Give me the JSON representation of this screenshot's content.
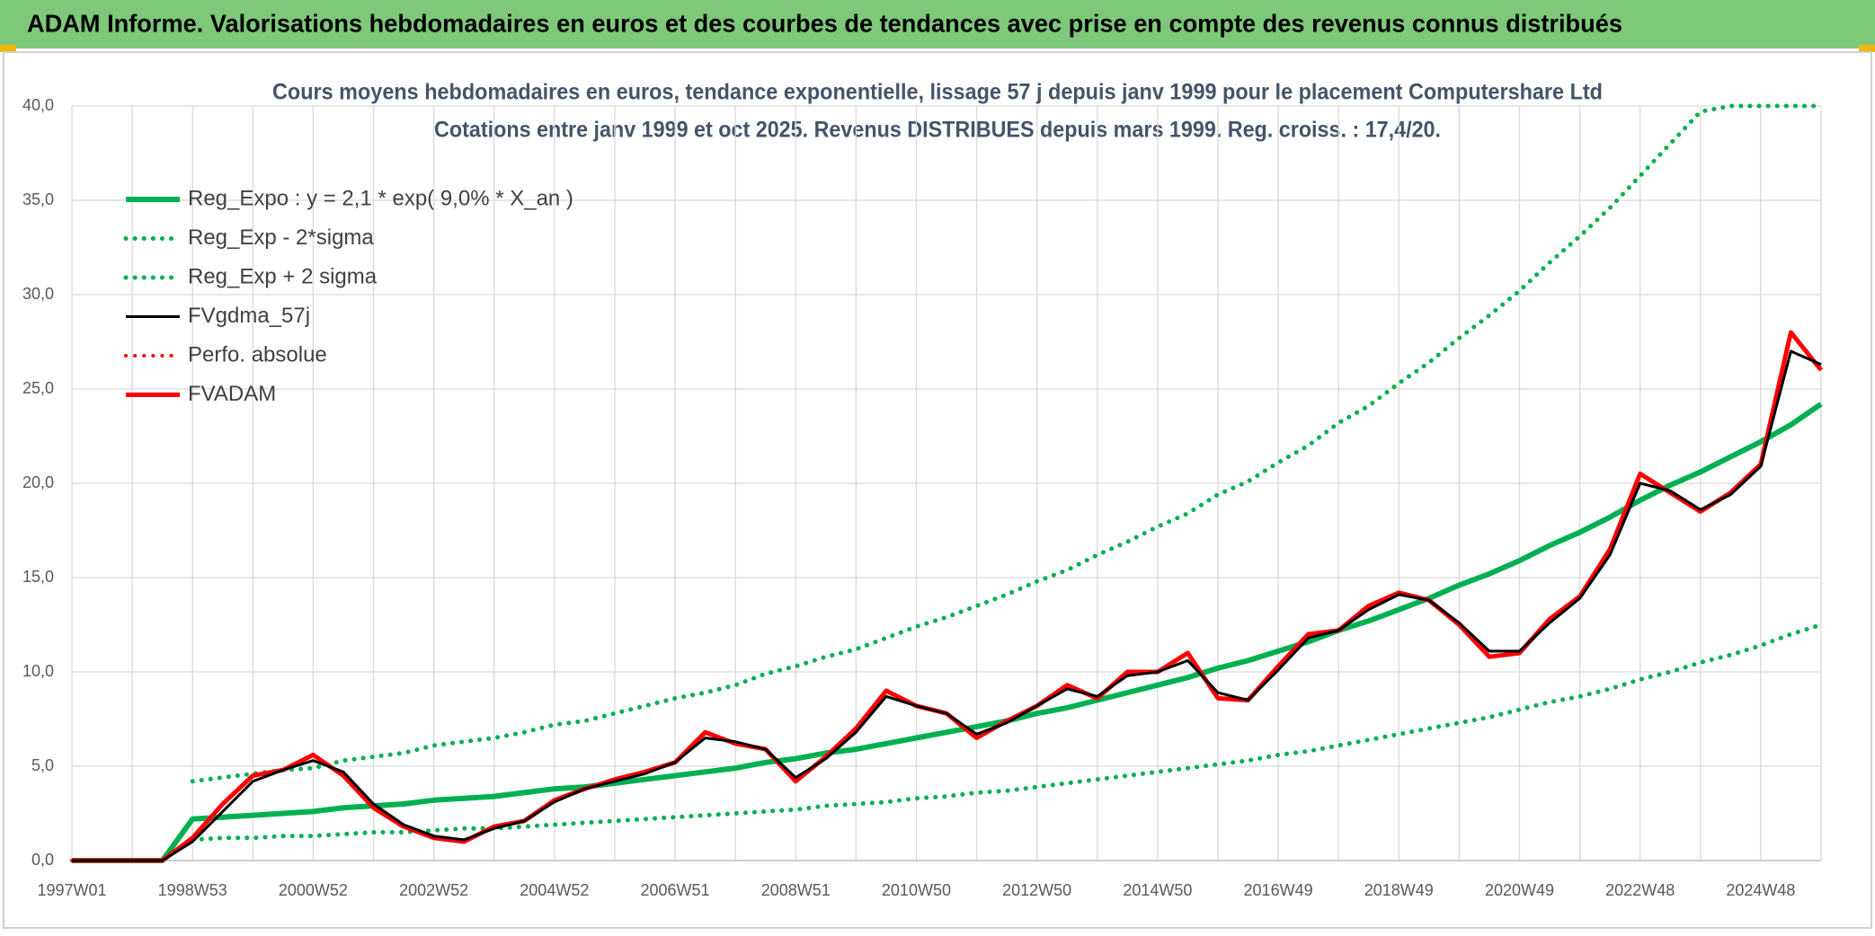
{
  "chart_data": {
    "type": "line",
    "header": "ADAM Informe. Valorisations hebdomadaires en euros et des courbes de tendances avec prise en compte des revenus connus distribués",
    "title": "Cours moyens hebdomadaires en euros, tendance exponentielle, lissage 57 j depuis janv 1999 pour le placement Computershare Ltd",
    "subtitle": "Cotations entre janv 1999 et oct 2025. Revenus DISTRIBUES depuis mars 1999. Reg. croiss. : 17,4/20.",
    "categories": [
      "1997W01",
      null,
      null,
      null,
      "1998W53",
      null,
      null,
      null,
      "2000W52",
      null,
      null,
      null,
      "2002W52",
      null,
      null,
      null,
      "2004W52",
      null,
      null,
      null,
      "2006W51",
      null,
      null,
      null,
      "2008W51",
      null,
      null,
      null,
      "2010W50",
      null,
      null,
      null,
      "2012W50",
      null,
      null,
      null,
      "2014W50",
      null,
      null,
      null,
      "2016W49",
      null,
      null,
      null,
      "2018W49",
      null,
      null,
      null,
      "2020W49",
      null,
      null,
      null,
      "2022W48",
      null,
      null,
      null,
      "2024W48",
      null,
      null
    ],
    "ylim": [
      0,
      40
    ],
    "yticks": [
      {
        "value": 0,
        "label": "0,0"
      },
      {
        "value": 5,
        "label": "5,0"
      },
      {
        "value": 10,
        "label": "10,0"
      },
      {
        "value": 15,
        "label": "15,0"
      },
      {
        "value": 20,
        "label": "20,0"
      },
      {
        "value": 25,
        "label": "25,0"
      },
      {
        "value": 30,
        "label": "30,0"
      },
      {
        "value": 35,
        "label": "35,0"
      },
      {
        "value": 40,
        "label": "40,0"
      }
    ],
    "grid": true,
    "legend": "top-left",
    "series": [
      {
        "name": "Reg_Expo : y = 2,1 * exp( 9,0% *  X_an )",
        "color": "#00b050",
        "line_style": "solid",
        "values": [
          0,
          0,
          0,
          0,
          2.2,
          2.3,
          2.4,
          2.5,
          2.6,
          2.8,
          2.9,
          3.0,
          3.2,
          3.3,
          3.4,
          3.6,
          3.8,
          3.9,
          4.1,
          4.3,
          4.5,
          4.7,
          4.9,
          5.2,
          5.4,
          5.7,
          5.9,
          6.2,
          6.5,
          6.8,
          7.1,
          7.4,
          7.8,
          8.1,
          8.5,
          8.9,
          9.3,
          9.7,
          10.2,
          10.6,
          11.1,
          11.6,
          12.2,
          12.7,
          13.3,
          13.9,
          14.6,
          15.2,
          15.9,
          16.7,
          17.4,
          18.2,
          19.1,
          19.9,
          20.6,
          21.4,
          22.2,
          23.1,
          24.2
        ]
      },
      {
        "name": "Reg_Exp - 2*sigma",
        "color": "#00b050",
        "line_style": "dotted",
        "values": [
          null,
          null,
          null,
          null,
          1.1,
          1.2,
          1.2,
          1.3,
          1.3,
          1.4,
          1.5,
          1.5,
          1.6,
          1.7,
          1.7,
          1.8,
          1.9,
          2.0,
          2.1,
          2.2,
          2.3,
          2.4,
          2.5,
          2.6,
          2.7,
          2.9,
          3.0,
          3.1,
          3.3,
          3.4,
          3.6,
          3.7,
          3.9,
          4.1,
          4.3,
          4.5,
          4.7,
          4.9,
          5.1,
          5.3,
          5.6,
          5.8,
          6.1,
          6.4,
          6.7,
          7.0,
          7.3,
          7.6,
          8.0,
          8.4,
          8.7,
          9.1,
          9.6,
          10.0,
          10.5,
          10.9,
          11.4,
          12.0,
          12.5
        ]
      },
      {
        "name": "Reg_Exp + 2 sigma",
        "color": "#00b050",
        "line_style": "dotted",
        "values": [
          null,
          null,
          null,
          null,
          4.2,
          4.4,
          4.6,
          4.8,
          4.9,
          5.3,
          5.5,
          5.7,
          6.1,
          6.3,
          6.5,
          6.8,
          7.2,
          7.4,
          7.8,
          8.2,
          8.6,
          8.9,
          9.3,
          9.9,
          10.3,
          10.8,
          11.2,
          11.8,
          12.4,
          12.9,
          13.5,
          14.1,
          14.8,
          15.4,
          16.2,
          16.9,
          17.7,
          18.4,
          19.4,
          20.1,
          21.1,
          22.0,
          23.2,
          24.1,
          25.3,
          26.4,
          27.7,
          28.9,
          30.2,
          31.7,
          33.1,
          34.6,
          36.3,
          38.0,
          39.7,
          40,
          40,
          40,
          40
        ]
      },
      {
        "name": "FVgdma_57j",
        "color": "#000000",
        "line_style": "solid",
        "values": [
          0,
          0,
          0,
          0,
          1.0,
          2.6,
          4.2,
          4.8,
          5.3,
          4.7,
          3.0,
          1.9,
          1.3,
          1.1,
          1.7,
          2.1,
          3.1,
          3.8,
          4.2,
          4.6,
          5.2,
          6.5,
          6.3,
          5.9,
          4.4,
          5.4,
          6.8,
          8.7,
          8.2,
          7.8,
          6.7,
          7.3,
          8.2,
          9.1,
          8.7,
          9.8,
          10.0,
          10.6,
          8.9,
          8.5,
          10.1,
          11.8,
          12.2,
          13.3,
          14.1,
          13.8,
          12.6,
          11.1,
          11.1,
          12.6,
          13.9,
          16.2,
          20.0,
          19.6,
          18.6,
          19.4,
          20.9,
          27.0,
          26.3
        ]
      },
      {
        "name": "Perfo. absolue",
        "color": "#ff0000",
        "line_style": "dotted",
        "values": [
          0,
          0,
          0,
          0,
          1.2,
          3.0,
          4.5,
          4.8,
          5.6,
          4.5,
          2.8,
          1.8,
          1.2,
          1.0,
          1.8,
          2.1,
          3.2,
          3.8,
          4.3,
          4.7,
          5.2,
          6.8,
          6.2,
          5.9,
          4.2,
          5.5,
          7.0,
          9.0,
          8.2,
          7.8,
          6.5,
          7.4,
          8.2,
          9.3,
          8.6,
          10.0,
          10.0,
          11.0,
          8.6,
          8.5,
          10.3,
          12.0,
          12.2,
          13.5,
          14.2,
          13.8,
          12.5,
          10.8,
          11.0,
          12.8,
          14.0,
          16.5,
          20.5,
          19.5,
          18.5,
          19.5,
          21.0,
          28.0,
          26.0
        ]
      },
      {
        "name": "FVADAM",
        "color": "#ff0000",
        "line_style": "solid",
        "values": [
          0,
          0,
          0,
          0,
          1.2,
          3.0,
          4.5,
          4.8,
          5.6,
          4.5,
          2.8,
          1.8,
          1.2,
          1.0,
          1.8,
          2.1,
          3.2,
          3.8,
          4.3,
          4.7,
          5.2,
          6.8,
          6.2,
          5.9,
          4.2,
          5.5,
          7.0,
          9.0,
          8.2,
          7.8,
          6.5,
          7.4,
          8.2,
          9.3,
          8.6,
          10.0,
          10.0,
          11.0,
          8.6,
          8.5,
          10.3,
          12.0,
          12.2,
          13.5,
          14.2,
          13.8,
          12.5,
          10.8,
          11.0,
          12.8,
          14.0,
          16.5,
          20.5,
          19.5,
          18.5,
          19.5,
          21.0,
          28.0,
          26.0
        ]
      }
    ]
  }
}
